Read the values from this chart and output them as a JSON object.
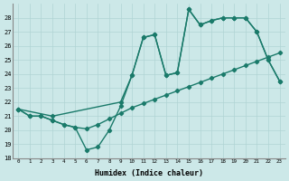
{
  "line_zigzag_x": [
    0,
    1,
    2,
    3,
    4,
    5,
    6,
    7,
    8,
    9,
    10,
    11,
    12,
    13,
    14,
    15,
    16,
    17,
    18,
    19,
    20,
    21,
    22,
    23
  ],
  "line_zigzag_y": [
    21.5,
    21.0,
    21.0,
    20.7,
    20.4,
    20.2,
    18.6,
    18.8,
    20.0,
    21.7,
    23.9,
    26.6,
    26.8,
    23.9,
    24.1,
    28.6,
    27.5,
    27.8,
    28.0,
    28.0,
    28.0,
    27.0,
    25.0,
    23.5
  ],
  "line_upper_x": [
    0,
    3,
    9,
    10,
    11,
    12,
    13,
    14,
    15,
    16,
    17,
    18,
    19,
    20,
    21,
    22,
    23
  ],
  "line_upper_y": [
    21.5,
    21.0,
    22.0,
    23.9,
    26.6,
    26.8,
    23.9,
    24.1,
    28.6,
    27.5,
    27.8,
    28.0,
    28.0,
    28.0,
    27.0,
    25.0,
    23.5
  ],
  "line_lower_x": [
    0,
    1,
    2,
    3,
    4,
    5,
    6,
    7,
    8,
    9,
    10,
    11,
    12,
    13,
    14,
    15,
    16,
    17,
    18,
    19,
    20,
    21,
    22,
    23
  ],
  "line_lower_y": [
    21.5,
    21.0,
    21.0,
    20.7,
    20.4,
    20.2,
    20.1,
    20.4,
    20.8,
    21.2,
    21.6,
    21.9,
    22.2,
    22.5,
    22.8,
    23.1,
    23.4,
    23.7,
    24.0,
    24.3,
    24.6,
    24.9,
    25.2,
    25.5
  ],
  "color": "#1a7a6a",
  "bg_color": "#cce8e8",
  "grid_color": "#b0d4d4",
  "xlabel": "Humidex (Indice chaleur)",
  "xlim": [
    -0.5,
    23.5
  ],
  "ylim": [
    18,
    29
  ],
  "yticks": [
    18,
    19,
    20,
    21,
    22,
    23,
    24,
    25,
    26,
    27,
    28
  ],
  "xticks": [
    0,
    1,
    2,
    3,
    4,
    5,
    6,
    7,
    8,
    9,
    10,
    11,
    12,
    13,
    14,
    15,
    16,
    17,
    18,
    19,
    20,
    21,
    22,
    23
  ],
  "xtick_labels": [
    "0",
    "1",
    "2",
    "3",
    "4",
    "5",
    "6",
    "7",
    "8",
    "9",
    "10",
    "11",
    "12",
    "13",
    "14",
    "15",
    "16",
    "17",
    "18",
    "19",
    "20",
    "21",
    "22",
    "23"
  ],
  "marker": "D",
  "marker_size": 2.2,
  "linewidth": 1.0
}
